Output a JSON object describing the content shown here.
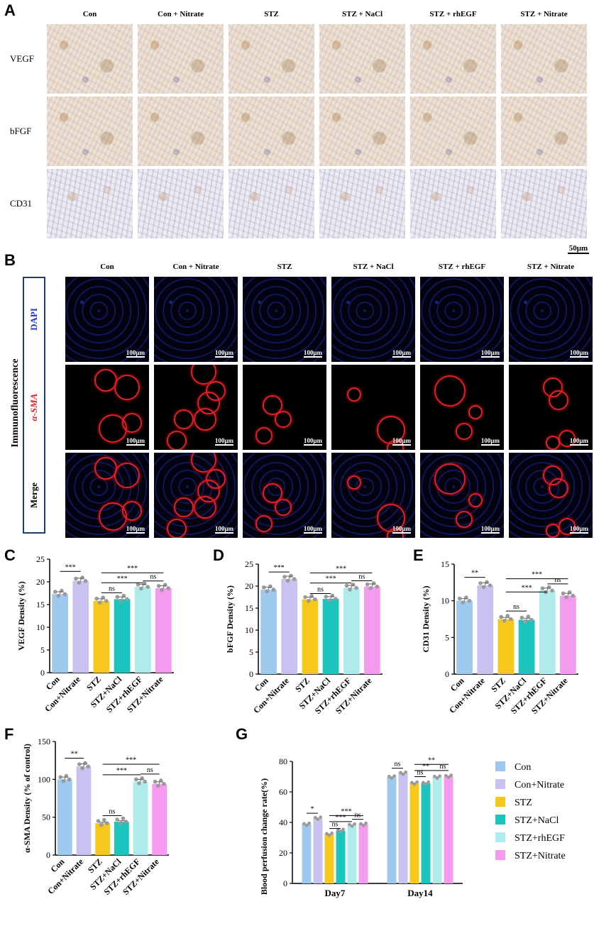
{
  "panelA": {
    "label": "A",
    "columns": [
      "Con",
      "Con + Nitrate",
      "STZ",
      "STZ + NaCl",
      "STZ + rhEGF",
      "STZ + Nitrate"
    ],
    "rows": [
      "VEGF",
      "bFGF",
      "CD31"
    ],
    "scalebar": "50μm"
  },
  "panelB": {
    "label": "B",
    "columns": [
      "Con",
      "Con + Nitrate",
      "STZ",
      "STZ + NaCl",
      "STZ + rhEGF",
      "STZ + Nitrate"
    ],
    "side_label": "Immunofluorescence",
    "rows": [
      "DAPI",
      "α-SMA",
      "Merge"
    ],
    "scalebar": "100μm"
  },
  "colors": {
    "Con": "#9ec9ef",
    "Con+Nitrate": "#c7c2ef",
    "STZ": "#f7c81c",
    "STZ+NaCl": "#1cc4be",
    "STZ+rhEGF": "#aeecec",
    "STZ+Nitrate": "#f59bef"
  },
  "chart_data": [
    {
      "panel": "C",
      "type": "bar",
      "ylabel": "VEGF Density (%)",
      "categories": [
        "Con",
        "Con+Nitrate",
        "STZ",
        "STZ+NaCl",
        "STZ+rhEGF",
        "STZ+Nitrate"
      ],
      "values": [
        17.3,
        20.2,
        15.8,
        16.2,
        18.9,
        18.6
      ],
      "ylim": [
        0,
        25
      ],
      "yticks": [
        0,
        5,
        10,
        15,
        20,
        25
      ],
      "annotations": [
        {
          "from": 0,
          "to": 1,
          "text": "***",
          "y": 22.3
        },
        {
          "from": 2,
          "to": 3,
          "text": "ns",
          "y": 17.6
        },
        {
          "from": 2,
          "to": 4,
          "text": "***",
          "y": 19.8
        },
        {
          "from": 2,
          "to": 5,
          "text": "***",
          "y": 22.0
        },
        {
          "from": 4,
          "to": 5,
          "text": "ns",
          "y": 20.2
        }
      ]
    },
    {
      "panel": "D",
      "type": "bar",
      "ylabel": "bFGF Density (%)",
      "categories": [
        "Con",
        "Con+Nitrate",
        "STZ",
        "STZ+NaCl",
        "STZ+rhEGF",
        "STZ+Nitrate"
      ],
      "values": [
        19.2,
        21.6,
        17.0,
        17.1,
        19.6,
        19.9
      ],
      "ylim": [
        0,
        25
      ],
      "yticks": [
        0,
        5,
        10,
        15,
        20,
        25
      ],
      "annotations": [
        {
          "from": 0,
          "to": 1,
          "text": "***",
          "y": 23.2
        },
        {
          "from": 2,
          "to": 3,
          "text": "ns",
          "y": 18.3
        },
        {
          "from": 2,
          "to": 4,
          "text": "***",
          "y": 20.7
        },
        {
          "from": 2,
          "to": 5,
          "text": "***",
          "y": 23.0
        },
        {
          "from": 4,
          "to": 5,
          "text": "ns",
          "y": 21.2
        }
      ]
    },
    {
      "panel": "E",
      "type": "bar",
      "ylabel": "CD31 Density (%)",
      "categories": [
        "Con",
        "Con+Nitrate",
        "STZ",
        "STZ+NaCl",
        "STZ+rhEGF",
        "STZ+Nitrate"
      ],
      "values": [
        10.0,
        12.1,
        7.5,
        7.4,
        11.4,
        10.7
      ],
      "ylim": [
        0,
        15
      ],
      "yticks": [
        0,
        5,
        10,
        15
      ],
      "annotations": [
        {
          "from": 0,
          "to": 1,
          "text": "**",
          "y": 13.2
        },
        {
          "from": 2,
          "to": 3,
          "text": "ns",
          "y": 8.6
        },
        {
          "from": 2,
          "to": 4,
          "text": "***",
          "y": 11.2
        },
        {
          "from": 2,
          "to": 5,
          "text": "***",
          "y": 13.0
        },
        {
          "from": 4,
          "to": 5,
          "text": "ns",
          "y": 12.3
        }
      ]
    },
    {
      "panel": "F",
      "type": "bar",
      "ylabel": "α-SMA Density (% of control)",
      "categories": [
        "Con",
        "Con+Nitrate",
        "STZ",
        "STZ+NaCl",
        "STZ+rhEGF",
        "STZ+Nitrate"
      ],
      "values": [
        100,
        117,
        42,
        44,
        97,
        94
      ],
      "ylim": [
        0,
        150
      ],
      "yticks": [
        0,
        50,
        100,
        150
      ],
      "annotations": [
        {
          "from": 0,
          "to": 1,
          "text": "**",
          "y": 128
        },
        {
          "from": 2,
          "to": 3,
          "text": "ns",
          "y": 52
        },
        {
          "from": 2,
          "to": 4,
          "text": "***",
          "y": 106
        },
        {
          "from": 2,
          "to": 5,
          "text": "***",
          "y": 120
        },
        {
          "from": 4,
          "to": 5,
          "text": "ns",
          "y": 107
        }
      ]
    },
    {
      "panel": "G",
      "type": "bar",
      "ylabel": "Blood perfusion change rate(%)",
      "categories": [
        "Day7",
        "Day14"
      ],
      "series": [
        {
          "name": "Con",
          "values": [
            38.5,
            69.5
          ]
        },
        {
          "name": "Con+Nitrate",
          "values": [
            42.5,
            72.0
          ]
        },
        {
          "name": "STZ",
          "values": [
            32.0,
            65.5
          ]
        },
        {
          "name": "STZ+NaCl",
          "values": [
            34.5,
            65.5
          ]
        },
        {
          "name": "STZ+rhEGF",
          "values": [
            38.0,
            69.5
          ]
        },
        {
          "name": "STZ+Nitrate",
          "values": [
            38.5,
            70.0
          ]
        }
      ],
      "ylim": [
        0,
        80
      ],
      "yticks": [
        0,
        20,
        40,
        60,
        80
      ],
      "legend": "right",
      "annotations": [
        {
          "group": 0,
          "from": 0,
          "to": 1,
          "text": "*",
          "y": 46
        },
        {
          "group": 0,
          "from": 2,
          "to": 3,
          "text": "ns",
          "y": 36
        },
        {
          "group": 0,
          "from": 2,
          "to": 4,
          "text": "***",
          "y": 40.5
        },
        {
          "group": 0,
          "from": 2,
          "to": 5,
          "text": "***",
          "y": 44.5
        },
        {
          "group": 0,
          "from": 4,
          "to": 5,
          "text": "ns",
          "y": 42
        },
        {
          "group": 1,
          "from": 0,
          "to": 1,
          "text": "ns",
          "y": 75.5
        },
        {
          "group": 1,
          "from": 2,
          "to": 3,
          "text": "ns",
          "y": 70
        },
        {
          "group": 1,
          "from": 2,
          "to": 4,
          "text": "**",
          "y": 74
        },
        {
          "group": 1,
          "from": 2,
          "to": 5,
          "text": "**",
          "y": 78
        },
        {
          "group": 1,
          "from": 4,
          "to": 5,
          "text": "ns",
          "y": 74
        }
      ]
    }
  ]
}
